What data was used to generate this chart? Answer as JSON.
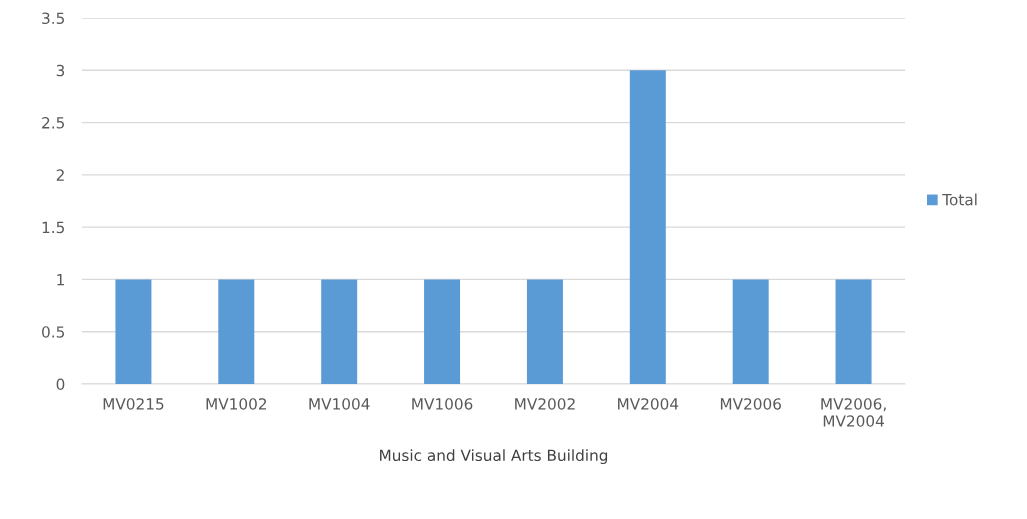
{
  "chart_data": {
    "type": "bar",
    "categories": [
      "MV0215",
      "MV1002",
      "MV1004",
      "MV1006",
      "MV2002",
      "MV2004",
      "MV2006",
      "MV2006,\nMV2004"
    ],
    "series": [
      {
        "name": "Total",
        "color": "#5b9bd5",
        "values": [
          1,
          1,
          1,
          1,
          1,
          3,
          1,
          1
        ]
      }
    ],
    "xlabel": "Music and Visual Arts Building",
    "ylim": [
      0,
      3.5
    ],
    "yticks": [
      0,
      0.5,
      1,
      1.5,
      2,
      2.5,
      3,
      3.5
    ],
    "grid": "y",
    "legend": "right"
  }
}
